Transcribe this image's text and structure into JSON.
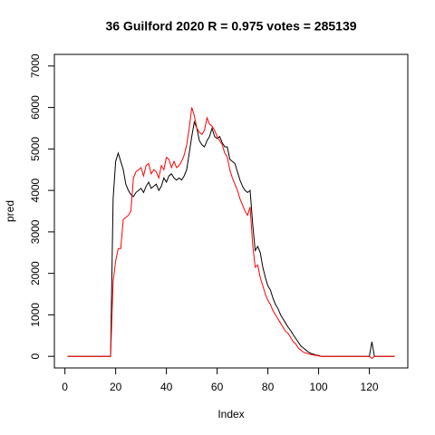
{
  "chart_data": {
    "type": "line",
    "title": "36 Guilford 2020 R = 0.975 votes = 285139",
    "xlabel": "Index",
    "ylabel": "pred",
    "x": [
      1,
      2,
      3,
      4,
      5,
      6,
      7,
      8,
      9,
      10,
      11,
      12,
      13,
      14,
      15,
      16,
      17,
      18,
      19,
      20,
      21,
      22,
      23,
      24,
      25,
      26,
      27,
      28,
      29,
      30,
      31,
      32,
      33,
      34,
      35,
      36,
      37,
      38,
      39,
      40,
      41,
      42,
      43,
      44,
      45,
      46,
      47,
      48,
      49,
      50,
      51,
      52,
      53,
      54,
      55,
      56,
      57,
      58,
      59,
      60,
      61,
      62,
      63,
      64,
      65,
      66,
      67,
      68,
      69,
      70,
      71,
      72,
      73,
      74,
      75,
      76,
      77,
      78,
      79,
      80,
      81,
      82,
      83,
      84,
      85,
      86,
      87,
      88,
      89,
      90,
      91,
      92,
      93,
      94,
      95,
      96,
      97,
      98,
      99,
      100,
      101,
      102,
      103,
      104,
      105,
      106,
      107,
      108,
      109,
      110,
      111,
      112,
      113,
      114,
      115,
      116,
      117,
      118,
      119,
      120,
      121,
      122,
      123,
      124,
      125,
      126,
      127,
      128,
      129,
      130
    ],
    "series": [
      {
        "color": "#000000",
        "values": [
          0,
          0,
          0,
          0,
          0,
          0,
          0,
          0,
          0,
          0,
          0,
          0,
          0,
          0,
          0,
          0,
          0,
          0,
          3800,
          4700,
          4900,
          4700,
          4500,
          4150,
          4000,
          3900,
          3850,
          3950,
          4000,
          4050,
          3950,
          4100,
          4200,
          4050,
          4100,
          4150,
          4000,
          4100,
          4300,
          4200,
          4350,
          4400,
          4300,
          4250,
          4300,
          4250,
          4350,
          4500,
          4900,
          5300,
          5650,
          5500,
          5200,
          5100,
          5050,
          5200,
          5300,
          5500,
          5300,
          5250,
          5300,
          5150,
          5050,
          5050,
          4750,
          4700,
          4650,
          4450,
          4250,
          4100,
          4000,
          3950,
          4000,
          3200,
          2550,
          2650,
          2500,
          2150,
          1900,
          1700,
          1600,
          1400,
          1250,
          1150,
          1000,
          900,
          800,
          700,
          620,
          520,
          430,
          340,
          250,
          200,
          150,
          100,
          70,
          50,
          30,
          20,
          0,
          0,
          0,
          0,
          0,
          0,
          0,
          0,
          0,
          0,
          0,
          0,
          0,
          0,
          0,
          0,
          0,
          0,
          0,
          0,
          350,
          0,
          0,
          0,
          0,
          0,
          0,
          0,
          0,
          0
        ]
      },
      {
        "color": "#ff0000",
        "values": [
          0,
          0,
          0,
          0,
          0,
          0,
          0,
          0,
          0,
          0,
          0,
          0,
          0,
          0,
          0,
          0,
          0,
          0,
          1800,
          2300,
          2600,
          2600,
          3300,
          3350,
          3400,
          3500,
          4300,
          4450,
          4500,
          4550,
          4350,
          4600,
          4650,
          4400,
          4500,
          4450,
          4300,
          4600,
          4500,
          4800,
          4750,
          4550,
          4700,
          4550,
          4600,
          4700,
          4850,
          5100,
          5500,
          6000,
          5800,
          5500,
          5400,
          5350,
          5450,
          5750,
          5600,
          5550,
          5450,
          5300,
          5200,
          5100,
          4900,
          4800,
          4500,
          4300,
          4150,
          4000,
          3800,
          3650,
          3500,
          3400,
          3600,
          2700,
          2150,
          2200,
          1900,
          1700,
          1500,
          1350,
          1250,
          1100,
          1000,
          900,
          800,
          700,
          600,
          550,
          450,
          350,
          300,
          200,
          150,
          100,
          80,
          60,
          40,
          30,
          20,
          10,
          0,
          0,
          0,
          0,
          0,
          0,
          0,
          0,
          0,
          0,
          0,
          0,
          0,
          0,
          0,
          0,
          0,
          0,
          0,
          0,
          -50,
          0,
          0,
          0,
          0,
          0,
          0,
          0,
          0,
          0
        ]
      }
    ],
    "xlim": [
      -4.16,
      135.16
    ],
    "xticks": [
      0,
      20,
      40,
      60,
      80,
      100,
      120
    ],
    "ylim": [
      -280,
      7280
    ],
    "yticks": [
      0,
      1000,
      2000,
      3000,
      4000,
      5000,
      6000,
      7000
    ]
  }
}
